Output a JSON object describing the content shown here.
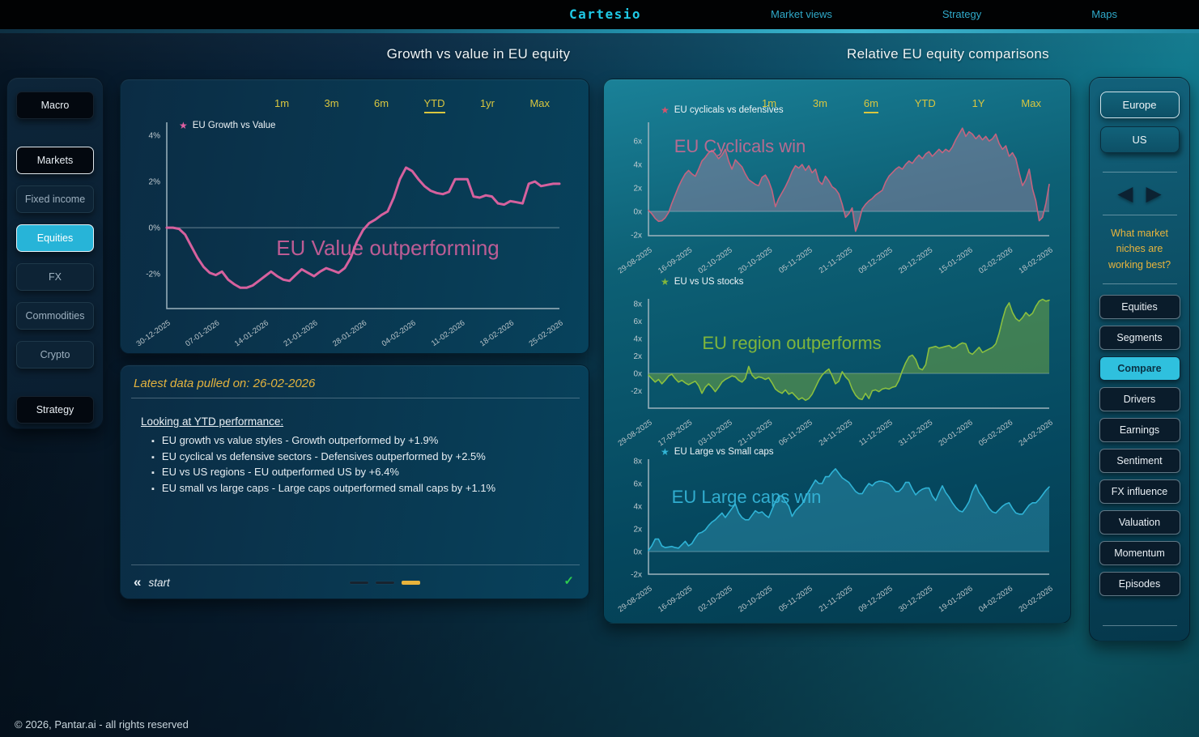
{
  "nav": {
    "logo": "Cartesio",
    "links": [
      "Market views",
      "Strategy",
      "Maps"
    ]
  },
  "section_titles": {
    "left": "Growth vs value in EU equity",
    "right": "Relative EU equity comparisons"
  },
  "left_sidebar": {
    "items": [
      {
        "label": "Macro",
        "variant": "primary",
        "selected": false
      },
      {
        "divider": true
      },
      {
        "label": "Markets",
        "variant": "primary",
        "selected": true
      },
      {
        "label": "Fixed income",
        "variant": "muted",
        "selected": false
      },
      {
        "label": "Equities",
        "variant": "accent",
        "selected": true
      },
      {
        "label": "FX",
        "variant": "muted",
        "selected": false
      },
      {
        "label": "Commodities",
        "variant": "muted",
        "selected": false
      },
      {
        "label": "Crypto",
        "variant": "muted",
        "selected": false
      },
      {
        "divider": true
      },
      {
        "label": "Strategy",
        "variant": "primary",
        "selected": false
      }
    ]
  },
  "main_panel": {
    "timeframes": [
      "1m",
      "3m",
      "6m",
      "YTD",
      "1yr",
      "Max"
    ],
    "selected_timeframe": "YTD"
  },
  "right_panel": {
    "timeframes": [
      "1m",
      "3m",
      "6m",
      "YTD",
      "1Y",
      "Max"
    ],
    "selected_timeframe": "6m"
  },
  "info_panel": {
    "header": "Latest data pulled on: 26-02-2026",
    "heading": "Looking at YTD performance:",
    "bullets": [
      "EU growth vs value styles - Growth outperformed by +1.9%",
      "EU cyclical vs defensive sectors - Defensives outperformed by +2.5%",
      "EU vs US regions - EU outperformed US by +6.4%",
      "EU small vs large caps - Large caps outperformed small caps by +1.1%"
    ],
    "back_icon": "«",
    "back_label": "start",
    "pager": {
      "count": 3,
      "active_index": 2
    },
    "check_icon": "✓"
  },
  "right_sidebar": {
    "regions": [
      {
        "label": "Europe",
        "selected": true
      },
      {
        "label": "US",
        "selected": false
      }
    ],
    "question": "What market niches are working best?",
    "menu": [
      {
        "label": "Equities",
        "selected": false
      },
      {
        "label": "Segments",
        "selected": false
      },
      {
        "label": "Compare",
        "selected": true
      },
      {
        "label": "Drivers",
        "selected": false
      },
      {
        "label": "Earnings",
        "selected": false
      },
      {
        "label": "Sentiment",
        "selected": false
      },
      {
        "label": "FX influence",
        "selected": false
      },
      {
        "label": "Valuation",
        "selected": false
      },
      {
        "label": "Momentum",
        "selected": false
      },
      {
        "label": "Episodes",
        "selected": false
      }
    ]
  },
  "page_footer": "© 2026, Pantar.ai - all rights reserved",
  "colors": {
    "accent_cyan": "#2bbcd9",
    "timeframe_yellow": "#d9c63f",
    "note_yellow": "#e3b33e",
    "check_green": "#2ecc4f"
  },
  "chart_data": [
    {
      "type": "line",
      "title": "EU Growth vs Value",
      "annotation": "EU Value outperforming",
      "star_color": "#e060a2",
      "line_color": "#d6619e",
      "annotation_color": "rgba(214,98,158,0.88)",
      "ylabel_unit": "%",
      "ylim": [
        -3.5,
        4.56
      ],
      "y_ticks": [
        {
          "value": 4,
          "label": "4%"
        },
        {
          "value": 2,
          "label": "2%"
        },
        {
          "value": 0,
          "label": "0%"
        },
        {
          "value": -2,
          "label": "-2%"
        }
      ],
      "x_ticks": [
        "30-12-2025",
        "07-01-2026",
        "14-01-2026",
        "21-01-2026",
        "28-01-2026",
        "04-02-2026",
        "11-02-2026",
        "18-02-2026",
        "25-02-2026"
      ],
      "values": [
        0.0,
        0.0,
        -0.05,
        -0.3,
        -0.8,
        -1.3,
        -1.7,
        -1.95,
        -2.05,
        -1.9,
        -2.25,
        -2.45,
        -2.6,
        -2.6,
        -2.5,
        -2.3,
        -2.1,
        -1.9,
        -2.1,
        -2.25,
        -2.3,
        -2.05,
        -1.8,
        -1.95,
        -2.1,
        -1.9,
        -1.75,
        -1.85,
        -1.95,
        -1.75,
        -1.3,
        -0.6,
        -0.1,
        0.2,
        0.35,
        0.55,
        0.7,
        1.3,
        2.1,
        2.6,
        2.45,
        2.1,
        1.8,
        1.6,
        1.5,
        1.45,
        1.55,
        2.1,
        2.1,
        2.1,
        1.35,
        1.3,
        1.4,
        1.35,
        1.05,
        1.0,
        1.15,
        1.1,
        1.05,
        1.9,
        2.0,
        1.8,
        1.85,
        1.9,
        1.9
      ]
    },
    {
      "type": "area",
      "title": "EU cyclicals vs defensives",
      "annotation": "EU Cyclicals win",
      "star_color": "#d5546e",
      "line_color": "#c4647f",
      "fill_color": "rgba(155,135,165,0.48)",
      "annotation_color": "rgba(219,106,146,0.82)",
      "ylabel_unit": "x",
      "ylim": [
        -2.07,
        7.6
      ],
      "y_ticks": [
        {
          "value": 6,
          "label": "6x"
        },
        {
          "value": 4,
          "label": "4x"
        },
        {
          "value": 2,
          "label": "2x"
        },
        {
          "value": 0,
          "label": "0x"
        },
        {
          "value": -2,
          "label": "-2x"
        }
      ],
      "x_ticks": [
        "29-08-2025",
        "16-09-2025",
        "02-10-2025",
        "20-10-2025",
        "05-11-2025",
        "21-11-2025",
        "09-12-2025",
        "29-12-2025",
        "15-01-2026",
        "02-02-2026",
        "18-02-2026"
      ],
      "values": [
        0.1,
        -0.2,
        -0.6,
        -0.85,
        -0.8,
        -0.55,
        -0.1,
        0.7,
        1.4,
        2.1,
        2.7,
        3.2,
        3.5,
        3.2,
        3.0,
        3.6,
        4.3,
        4.6,
        5.0,
        5.2,
        4.9,
        4.5,
        4.8,
        5.3,
        4.3,
        3.6,
        4.4,
        4.1,
        3.8,
        3.2,
        2.7,
        2.5,
        2.3,
        2.2,
        2.9,
        3.1,
        2.6,
        1.8,
        0.4,
        1.1,
        1.6,
        2.1,
        2.7,
        3.4,
        3.9,
        3.7,
        4.0,
        3.5,
        3.9,
        3.3,
        3.6,
        2.6,
        2.3,
        3.0,
        2.6,
        2.1,
        1.9,
        1.5,
        0.6,
        -0.5,
        -0.2,
        0.3,
        -1.7,
        -0.9,
        0.2,
        0.6,
        0.9,
        1.1,
        1.4,
        1.6,
        1.8,
        2.5,
        3.0,
        3.3,
        3.6,
        3.8,
        3.6,
        4.0,
        4.3,
        4.1,
        4.5,
        4.8,
        4.5,
        4.9,
        5.1,
        4.7,
        5.0,
        5.3,
        5.0,
        5.3,
        5.1,
        5.5,
        6.1,
        6.6,
        7.1,
        6.4,
        6.8,
        6.6,
        6.2,
        6.5,
        6.1,
        6.4,
        6.0,
        6.2,
        6.6,
        5.8,
        5.3,
        5.6,
        4.7,
        5.0,
        4.5,
        3.3,
        2.2,
        2.7,
        3.6,
        1.9,
        0.9,
        -0.8,
        -0.5,
        0.7,
        2.3
      ]
    },
    {
      "type": "area",
      "title": "EU vs US stocks",
      "annotation": "EU region outperforms",
      "star_color": "#84b73c",
      "line_color": "#8abf3f",
      "fill_color": "rgba(118,171,66,0.5)",
      "annotation_color": "rgba(134,187,58,0.95)",
      "ylabel_unit": "x",
      "ylim": [
        -4.0,
        8.56
      ],
      "y_ticks": [
        {
          "value": 8,
          "label": "8x"
        },
        {
          "value": 6,
          "label": "6x"
        },
        {
          "value": 4,
          "label": "4x"
        },
        {
          "value": 2,
          "label": "2x"
        },
        {
          "value": 0,
          "label": "0x"
        },
        {
          "value": -2,
          "label": "-2x"
        }
      ],
      "x_ticks": [
        "29-08-2025",
        "17-09-2025",
        "03-10-2025",
        "21-10-2025",
        "06-11-2025",
        "24-11-2025",
        "11-12-2025",
        "31-12-2025",
        "20-01-2026",
        "05-02-2026",
        "24-02-2026"
      ],
      "values": [
        -0.2,
        -0.6,
        -1.0,
        -0.7,
        -1.2,
        -0.8,
        -0.3,
        -0.1,
        -0.6,
        -1.0,
        -0.8,
        -1.1,
        -1.3,
        -1.1,
        -0.9,
        -1.4,
        -2.3,
        -1.6,
        -1.2,
        -1.6,
        -2.1,
        -1.6,
        -1.0,
        -0.7,
        -0.5,
        -0.3,
        -0.4,
        -0.8,
        -1.0,
        -0.6,
        0.8,
        -0.2,
        -0.6,
        -0.4,
        -0.5,
        -0.7,
        -0.5,
        -1.1,
        -1.8,
        -2.1,
        -2.3,
        -1.9,
        -2.4,
        -2.2,
        -2.6,
        -3.0,
        -2.8,
        -3.1,
        -2.9,
        -2.4,
        -1.6,
        -0.8,
        -0.2,
        0.2,
        0.5,
        -0.3,
        -1.2,
        -0.9,
        0.2,
        -0.4,
        -0.8,
        -1.8,
        -2.5,
        -2.9,
        -3.0,
        -2.3,
        -2.9,
        -2.0,
        -1.9,
        -2.1,
        -1.8,
        -1.7,
        -1.8,
        -1.6,
        -1.5,
        -0.8,
        0.3,
        1.2,
        1.9,
        2.1,
        1.6,
        0.6,
        0.4,
        1.0,
        2.9,
        3.0,
        3.1,
        2.9,
        3.0,
        3.1,
        3.2,
        2.9,
        3.0,
        3.3,
        3.5,
        3.4,
        2.4,
        2.2,
        2.6,
        3.0,
        2.4,
        2.6,
        2.8,
        3.0,
        3.4,
        4.6,
        6.2,
        7.5,
        8.1,
        7.0,
        6.3,
        6.0,
        6.4,
        7.0,
        6.6,
        6.9,
        7.7,
        8.3,
        8.5,
        8.3,
        8.4
      ]
    },
    {
      "type": "area",
      "title": "EU Large vs Small caps",
      "annotation": "EU Large caps win",
      "star_color": "#33b5d6",
      "line_color": "#2fb3d6",
      "fill_color": "rgba(54,163,196,0.4)",
      "annotation_color": "rgba(54,184,220,0.9)",
      "ylabel_unit": "x",
      "ylim": [
        -2.0,
        8.14
      ],
      "y_ticks": [
        {
          "value": 8,
          "label": "8x"
        },
        {
          "value": 6,
          "label": "6x"
        },
        {
          "value": 4,
          "label": "4x"
        },
        {
          "value": 2,
          "label": "2x"
        },
        {
          "value": 0,
          "label": "0x"
        },
        {
          "value": -2,
          "label": "-2x"
        }
      ],
      "x_ticks": [
        "29-08-2025",
        "16-09-2025",
        "02-10-2025",
        "20-10-2025",
        "05-11-2025",
        "21-11-2025",
        "09-12-2025",
        "30-12-2025",
        "19-01-2026",
        "04-02-2026",
        "20-02-2026"
      ],
      "values": [
        0.1,
        0.5,
        1.1,
        1.1,
        0.5,
        0.35,
        0.4,
        0.45,
        0.35,
        0.3,
        0.6,
        0.9,
        0.5,
        0.7,
        1.2,
        1.6,
        1.7,
        1.9,
        2.3,
        2.6,
        2.8,
        3.1,
        3.4,
        3.0,
        3.4,
        3.8,
        4.2,
        3.4,
        3.0,
        2.8,
        2.8,
        3.2,
        3.6,
        3.4,
        3.5,
        3.2,
        3.0,
        3.7,
        4.4,
        4.9,
        4.9,
        4.4,
        4.0,
        3.1,
        3.6,
        3.9,
        4.2,
        4.8,
        5.3,
        5.8,
        6.3,
        6.0,
        6.0,
        6.6,
        6.6,
        7.0,
        7.3,
        6.9,
        6.5,
        6.3,
        6.1,
        5.7,
        5.3,
        5.1,
        5.1,
        5.6,
        6.0,
        5.8,
        6.1,
        6.2,
        6.2,
        6.1,
        6.0,
        5.7,
        5.3,
        5.3,
        5.6,
        6.1,
        6.1,
        5.5,
        5.0,
        5.3,
        5.5,
        5.6,
        5.6,
        4.9,
        4.5,
        5.2,
        5.8,
        5.2,
        4.8,
        4.3,
        3.9,
        3.6,
        3.5,
        3.9,
        4.4,
        5.3,
        5.9,
        5.2,
        4.8,
        4.3,
        3.8,
        3.5,
        3.4,
        3.7,
        4.0,
        4.2,
        4.3,
        3.8,
        3.4,
        3.3,
        3.3,
        3.7,
        4.1,
        4.3,
        4.3,
        4.6,
        5.0,
        5.4,
        5.7
      ]
    }
  ]
}
